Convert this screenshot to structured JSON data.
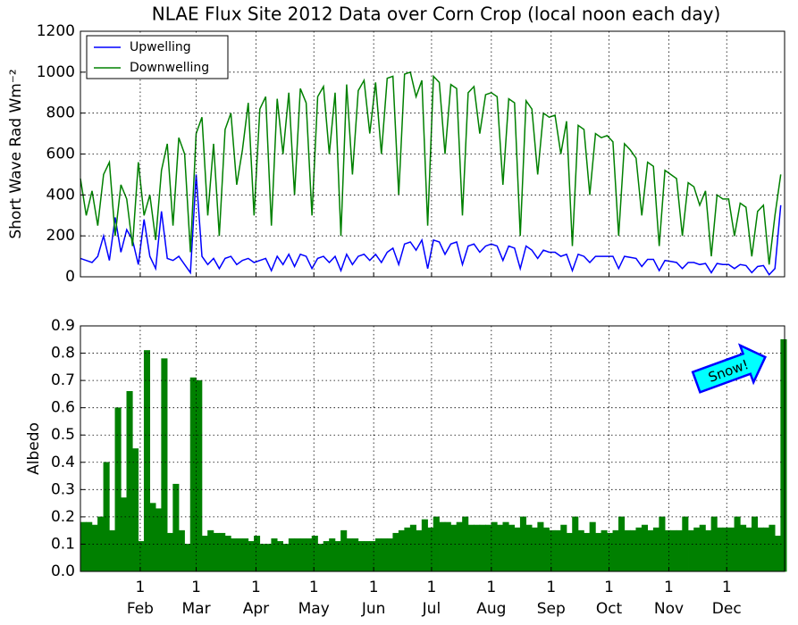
{
  "chart_data": [
    {
      "type": "line",
      "title": "NLAE Flux Site 2012 Data over Corn Crop (local noon each day)",
      "y_label": "Short Wave Rad Wm⁻²",
      "x": [
        1,
        4,
        7,
        10,
        13,
        16,
        19,
        22,
        25,
        28,
        31,
        34,
        37,
        40,
        43,
        46,
        49,
        52,
        55,
        58,
        61,
        64,
        67,
        70,
        73,
        76,
        79,
        82,
        85,
        88,
        91,
        94,
        97,
        100,
        103,
        106,
        109,
        112,
        115,
        118,
        121,
        124,
        127,
        130,
        133,
        136,
        139,
        142,
        145,
        148,
        151,
        154,
        157,
        160,
        163,
        166,
        169,
        172,
        175,
        178,
        181,
        184,
        187,
        190,
        193,
        196,
        199,
        202,
        205,
        208,
        211,
        214,
        217,
        220,
        223,
        226,
        229,
        232,
        235,
        238,
        241,
        244,
        247,
        250,
        253,
        256,
        259,
        262,
        265,
        268,
        271,
        274,
        277,
        280,
        283,
        286,
        289,
        292,
        295,
        298,
        301,
        304,
        307,
        310,
        313,
        316,
        319,
        322,
        325,
        328,
        331,
        334,
        337,
        340,
        343,
        346,
        349,
        352,
        355,
        358,
        361,
        364
      ],
      "series": [
        {
          "name": "Upwelling",
          "color": "#0000ff",
          "values": [
            90,
            80,
            70,
            100,
            200,
            80,
            290,
            120,
            230,
            180,
            60,
            280,
            100,
            40,
            320,
            90,
            80,
            100,
            60,
            20,
            500,
            100,
            60,
            90,
            40,
            90,
            100,
            60,
            80,
            90,
            70,
            80,
            90,
            30,
            100,
            60,
            110,
            50,
            110,
            100,
            40,
            90,
            100,
            70,
            100,
            30,
            110,
            60,
            100,
            110,
            80,
            110,
            70,
            120,
            140,
            60,
            160,
            170,
            130,
            180,
            40,
            180,
            170,
            110,
            160,
            170,
            60,
            150,
            160,
            120,
            150,
            160,
            150,
            80,
            150,
            140,
            40,
            150,
            130,
            90,
            130,
            120,
            120,
            100,
            110,
            30,
            110,
            100,
            70,
            100,
            100,
            100,
            100,
            40,
            100,
            95,
            90,
            50,
            85,
            85,
            30,
            80,
            75,
            70,
            40,
            70,
            70,
            60,
            65,
            20,
            65,
            60,
            60,
            40,
            60,
            55,
            20,
            50,
            55,
            10,
            40,
            350
          ]
        },
        {
          "name": "Downwelling",
          "color": "#008000",
          "values": [
            480,
            300,
            420,
            250,
            500,
            560,
            200,
            450,
            380,
            150,
            560,
            300,
            400,
            180,
            520,
            650,
            250,
            680,
            600,
            120,
            700,
            780,
            300,
            650,
            200,
            720,
            800,
            450,
            620,
            850,
            300,
            820,
            880,
            250,
            870,
            600,
            900,
            400,
            920,
            850,
            300,
            880,
            930,
            600,
            900,
            200,
            940,
            500,
            910,
            960,
            700,
            950,
            600,
            970,
            980,
            400,
            990,
            1000,
            880,
            960,
            250,
            980,
            950,
            600,
            940,
            920,
            300,
            900,
            930,
            700,
            890,
            900,
            880,
            450,
            870,
            850,
            200,
            860,
            820,
            500,
            800,
            780,
            790,
            600,
            760,
            150,
            740,
            720,
            400,
            700,
            680,
            690,
            660,
            200,
            650,
            620,
            580,
            300,
            560,
            540,
            150,
            520,
            500,
            480,
            200,
            460,
            440,
            350,
            420,
            100,
            400,
            380,
            380,
            200,
            360,
            340,
            100,
            320,
            350,
            60,
            300,
            500
          ]
        }
      ],
      "xlim": [
        1,
        366
      ],
      "ylim": [
        0,
        1200
      ],
      "yticks": [
        0,
        200,
        400,
        600,
        800,
        1000,
        1200
      ],
      "grid": true,
      "legend": "upper left"
    },
    {
      "type": "bar",
      "y_label": "Albedo",
      "color": "#008000",
      "annotation": "Snow!",
      "x": [
        1,
        4,
        7,
        10,
        13,
        16,
        19,
        22,
        25,
        28,
        31,
        34,
        37,
        40,
        43,
        46,
        49,
        52,
        55,
        58,
        61,
        64,
        67,
        70,
        73,
        76,
        79,
        82,
        85,
        88,
        91,
        94,
        97,
        100,
        103,
        106,
        109,
        112,
        115,
        118,
        121,
        124,
        127,
        130,
        133,
        136,
        139,
        142,
        145,
        148,
        151,
        154,
        157,
        160,
        163,
        166,
        169,
        172,
        175,
        178,
        181,
        184,
        187,
        190,
        193,
        196,
        199,
        202,
        205,
        208,
        211,
        214,
        217,
        220,
        223,
        226,
        229,
        232,
        235,
        238,
        241,
        244,
        247,
        250,
        253,
        256,
        259,
        262,
        265,
        268,
        271,
        274,
        277,
        280,
        283,
        286,
        289,
        292,
        295,
        298,
        301,
        304,
        307,
        310,
        313,
        316,
        319,
        322,
        325,
        328,
        331,
        334,
        337,
        340,
        343,
        346,
        349,
        352,
        355,
        358,
        361,
        364
      ],
      "values": [
        0.18,
        0.18,
        0.17,
        0.2,
        0.4,
        0.15,
        0.6,
        0.27,
        0.66,
        0.45,
        0.11,
        0.81,
        0.25,
        0.23,
        0.78,
        0.14,
        0.32,
        0.15,
        0.1,
        0.71,
        0.7,
        0.13,
        0.15,
        0.14,
        0.14,
        0.13,
        0.12,
        0.12,
        0.12,
        0.11,
        0.13,
        0.1,
        0.1,
        0.12,
        0.11,
        0.1,
        0.12,
        0.12,
        0.12,
        0.12,
        0.13,
        0.1,
        0.11,
        0.12,
        0.11,
        0.15,
        0.12,
        0.12,
        0.11,
        0.11,
        0.11,
        0.12,
        0.12,
        0.12,
        0.14,
        0.15,
        0.16,
        0.17,
        0.15,
        0.19,
        0.16,
        0.2,
        0.18,
        0.18,
        0.17,
        0.18,
        0.2,
        0.17,
        0.17,
        0.17,
        0.17,
        0.18,
        0.17,
        0.18,
        0.17,
        0.16,
        0.2,
        0.17,
        0.16,
        0.18,
        0.16,
        0.15,
        0.15,
        0.17,
        0.14,
        0.2,
        0.15,
        0.14,
        0.18,
        0.14,
        0.15,
        0.14,
        0.15,
        0.2,
        0.15,
        0.15,
        0.16,
        0.17,
        0.15,
        0.16,
        0.2,
        0.15,
        0.15,
        0.15,
        0.2,
        0.15,
        0.16,
        0.17,
        0.15,
        0.2,
        0.16,
        0.16,
        0.16,
        0.2,
        0.17,
        0.16,
        0.2,
        0.16,
        0.16,
        0.17,
        0.13,
        0.85
      ],
      "xlim": [
        1,
        366
      ],
      "ylim": [
        0,
        0.9
      ],
      "yticks": [
        {
          "value": 0,
          "label": "0.0"
        },
        0.1,
        0.2,
        0.3,
        0.4,
        0.5,
        0.6,
        0.7,
        0.8,
        0.9
      ],
      "xticks": [
        {
          "value": 32,
          "label": "1 Feb"
        },
        {
          "value": 61,
          "label": "1 Mar"
        },
        {
          "value": 92,
          "label": "1 Apr"
        },
        {
          "value": 122,
          "label": "1 May"
        },
        {
          "value": 153,
          "label": "1 Jun"
        },
        {
          "value": 183,
          "label": "1 Jul"
        },
        {
          "value": 214,
          "label": "1 Aug"
        },
        {
          "value": 245,
          "label": "1 Sep"
        },
        {
          "value": 275,
          "label": "1 Oct"
        },
        {
          "value": 306,
          "label": "1 Nov"
        },
        {
          "value": 336,
          "label": "1 Dec"
        }
      ],
      "grid": true
    }
  ]
}
